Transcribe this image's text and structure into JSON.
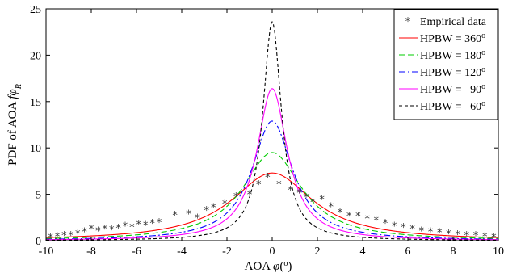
{
  "chart_data": {
    "type": "line",
    "xlabel": {
      "text": "AOA",
      "symbol": "φ",
      "unit_open": "(",
      "unit": "o",
      "unit_close": ")"
    },
    "ylabel": {
      "text": "PDF of AOA",
      "symbol": "fφ",
      "subscript": "R"
    },
    "xlim": [
      -10,
      10
    ],
    "ylim": [
      0,
      25
    ],
    "xticks": [
      -10,
      -8,
      -6,
      -4,
      -2,
      0,
      2,
      4,
      6,
      8,
      10
    ],
    "yticks": [
      0,
      5,
      10,
      15,
      20,
      25
    ],
    "grid": false,
    "legend_position": "top-right",
    "empirical": {
      "name": "Empirical data",
      "marker": "*",
      "color": "#333333",
      "x": [
        -9.8,
        -9.5,
        -9.2,
        -8.9,
        -8.6,
        -8.3,
        -8.0,
        -7.7,
        -7.4,
        -7.1,
        -6.8,
        -6.5,
        -6.2,
        -5.9,
        -5.6,
        -5.3,
        -5.0,
        -4.3,
        -3.7,
        -3.3,
        -2.9,
        -2.6,
        -2.1,
        -1.6,
        -1.0,
        -0.6,
        -0.2,
        0.3,
        0.8,
        1.2,
        1.5,
        1.8,
        2.2,
        2.6,
        3.0,
        3.4,
        3.8,
        4.2,
        4.6,
        5.0,
        5.4,
        5.8,
        6.2,
        6.6,
        7.0,
        7.4,
        7.8,
        8.2,
        8.6,
        9.0,
        9.4,
        9.8
      ],
      "y": [
        0.4,
        0.5,
        0.6,
        0.6,
        0.8,
        1.0,
        1.3,
        1.1,
        1.3,
        1.2,
        1.4,
        1.6,
        1.5,
        1.8,
        1.7,
        1.9,
        2.0,
        2.8,
        2.9,
        2.5,
        3.3,
        3.6,
        4.0,
        4.8,
        5.0,
        6.1,
        6.9,
        6.1,
        5.5,
        5.2,
        4.7,
        4.2,
        4.5,
        3.7,
        3.1,
        2.7,
        2.7,
        2.4,
        2.2,
        1.9,
        1.6,
        1.5,
        1.3,
        1.1,
        1.0,
        0.9,
        0.8,
        0.7,
        0.6,
        0.6,
        0.5,
        0.4
      ]
    },
    "series": [
      {
        "label": "HPBW = 360",
        "sup": "o",
        "peak": 7.3,
        "gamma": 2.2,
        "color": "#ff0000",
        "dash": ""
      },
      {
        "label": "HPBW = 180",
        "sup": "o",
        "peak": 9.5,
        "gamma": 1.6,
        "color": "#00cc00",
        "dash": "7,4"
      },
      {
        "label": "HPBW = 120",
        "sup": "o",
        "peak": 12.9,
        "gamma": 1.1,
        "color": "#0000ff",
        "dash": "8,3,2,3"
      },
      {
        "label": "HPBW =   90",
        "sup": "o",
        "peak": 16.4,
        "gamma": 0.82,
        "color": "#ff00ff",
        "dash": ""
      },
      {
        "label": "HPBW =   60",
        "sup": "o",
        "peak": 23.6,
        "gamma": 0.5,
        "color": "#000000",
        "dash": "4,3"
      }
    ]
  }
}
